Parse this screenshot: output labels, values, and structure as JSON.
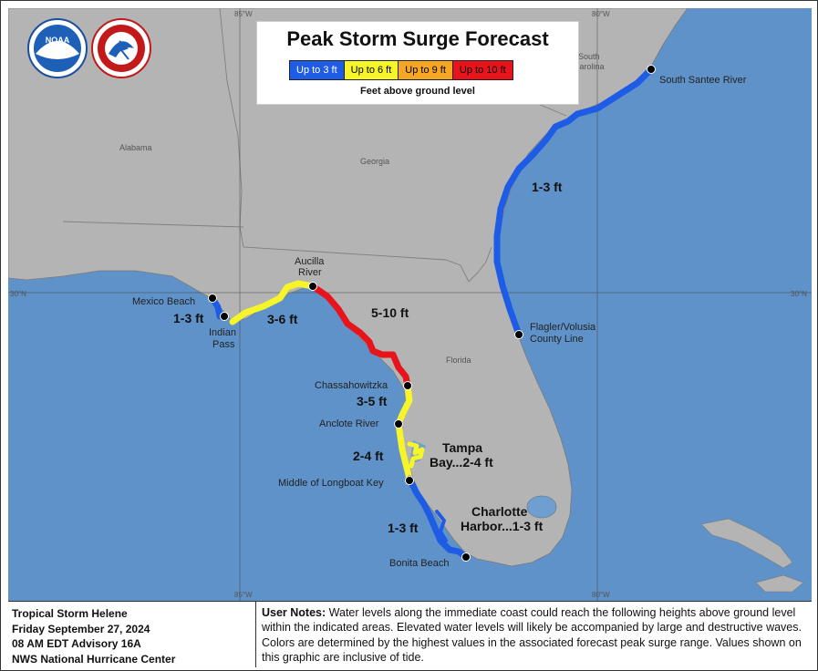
{
  "title": "Peak Storm Surge Forecast",
  "legend": {
    "items": [
      {
        "label": "Up to 3 ft",
        "color": "#1f5ce6",
        "text_color": "#ffffff"
      },
      {
        "label": "Up to 6 ft",
        "color": "#f5f52a",
        "text_color": "#000000"
      },
      {
        "label": "Up to 9 ft",
        "color": "#f5a623",
        "text_color": "#000000"
      },
      {
        "label": "Up to 10 ft",
        "color": "#e8141b",
        "text_color": "#000000"
      }
    ],
    "subtitle": "Feet above ground level"
  },
  "logos": {
    "noaa": "NOAA",
    "nws": "NATIONAL WEATHER SERVICE"
  },
  "grid_labels": {
    "lon_85": "85°W",
    "lon_80": "80°W",
    "lat_30": "30°N"
  },
  "states": [
    "Alabama",
    "Georgia",
    "South Carolina",
    "Florida"
  ],
  "locations": {
    "mexico_beach": "Mexico Beach",
    "indian_pass": "Indian Pass",
    "aucilla_river": "Aucilla River",
    "chassahowitzka": "Chassahowitzka",
    "anclote_river": "Anclote River",
    "longboat_key": "Middle of Longboat Key",
    "bonita_beach": "Bonita Beach",
    "flagler_volusia": "Flagler/Volusia County Line",
    "south_santee": "South Santee River"
  },
  "ranges": {
    "panhandle_west": "1-3 ft",
    "big_bend_west": "3-6 ft",
    "big_bend": "5-10 ft",
    "nature_coast": "3-5 ft",
    "tampa_coast": "2-4 ft",
    "tampa_bay": "Tampa Bay...2-4 ft",
    "sw_coast": "1-3 ft",
    "charlotte_harbor": "Charlotte Harbor...1-3 ft",
    "east_coast": "1-3 ft"
  },
  "storm_info": {
    "name": "Tropical Storm Helene",
    "date": "Friday September 27, 2024",
    "advisory": "08 AM EDT Advisory 16A",
    "center": "NWS National Hurricane Center"
  },
  "notes": {
    "label": "User Notes:",
    "text": "Water levels along the immediate coast could reach the following heights above ground level within the indicated areas. Elevated water levels will likely be accompanied by large and destructive waves. Colors are determined by the highest values in the associated forecast peak surge range. Values shown on this graphic are inclusive of tide."
  }
}
